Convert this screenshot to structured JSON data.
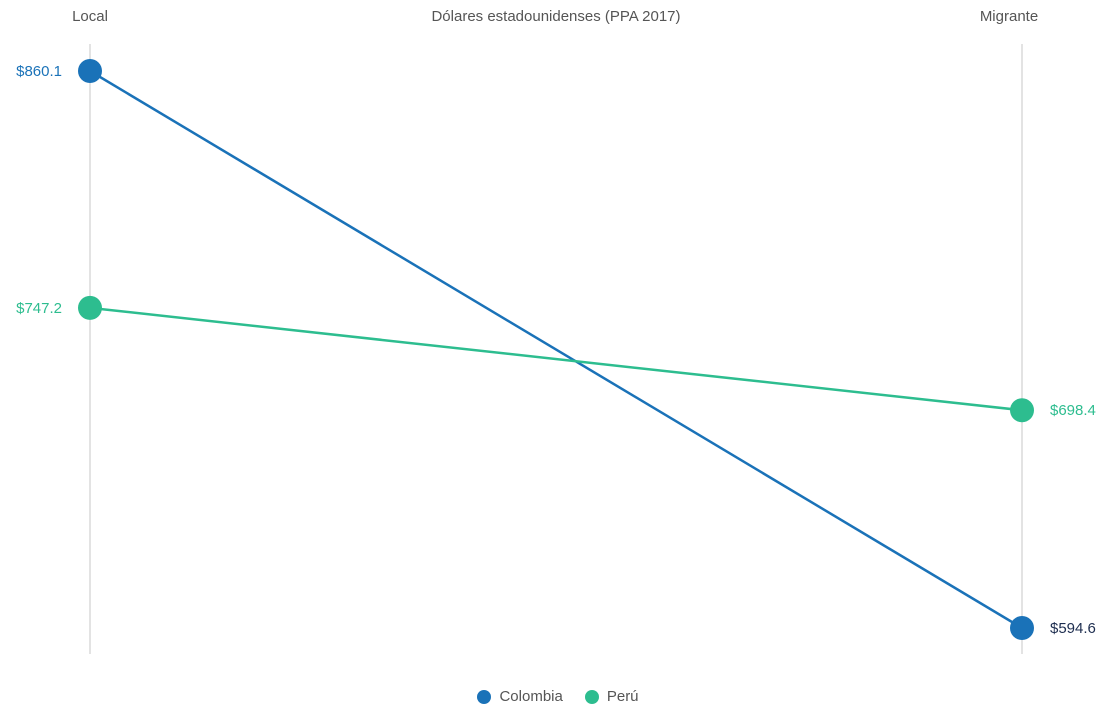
{
  "chart_data": {
    "type": "slope",
    "title": "Dólares estadounidenses (PPA 2017)",
    "categories": [
      "Local",
      "Migrante"
    ],
    "series": [
      {
        "name": "Colombia",
        "values": [
          860.1,
          594.6
        ],
        "labels": [
          "$860.1",
          "$594.6"
        ],
        "color": "#1a72b8",
        "label_colors": [
          "#1a72b8",
          "#1d2d4f"
        ]
      },
      {
        "name": "Perú",
        "values": [
          747.2,
          698.4
        ],
        "labels": [
          "$747.2",
          "$698.4"
        ],
        "color": "#2dbd8f",
        "label_colors": [
          "#2dbd8f",
          "#2dbd8f"
        ]
      }
    ],
    "y_range": [
      594.6,
      860.1
    ],
    "legend_position": "bottom-center",
    "grid": false
  }
}
